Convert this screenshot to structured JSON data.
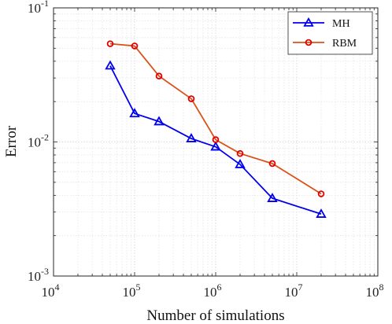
{
  "chart_data": {
    "type": "line",
    "xscale": "log",
    "yscale": "log",
    "xlabel": "Number of simulations",
    "ylabel": "Error",
    "xlim": [
      10000,
      100000000
    ],
    "ylim": [
      0.001,
      0.1
    ],
    "grid": true,
    "legend_position": "top-right",
    "x_ticks": [
      {
        "base": "10",
        "exp": "4",
        "value": 10000
      },
      {
        "base": "10",
        "exp": "5",
        "value": 100000
      },
      {
        "base": "10",
        "exp": "6",
        "value": 1000000
      },
      {
        "base": "10",
        "exp": "7",
        "value": 10000000
      },
      {
        "base": "10",
        "exp": "8",
        "value": 100000000
      }
    ],
    "y_ticks": [
      {
        "base": "10",
        "exp": "-3",
        "value": 0.001
      },
      {
        "base": "10",
        "exp": "-2",
        "value": 0.01
      },
      {
        "base": "10",
        "exp": "-1",
        "value": 0.1
      }
    ],
    "series": [
      {
        "name": "MH",
        "color": "#0000ee",
        "marker": "triangle",
        "x": [
          50000,
          100000,
          200000,
          500000,
          1000000,
          2000000,
          5000000,
          20000000
        ],
        "y": [
          0.037,
          0.0163,
          0.0142,
          0.0106,
          0.0092,
          0.0068,
          0.0038,
          0.0029
        ]
      },
      {
        "name": "RBM",
        "color": "#d95319",
        "marker_color": "#e00000",
        "marker": "circle",
        "x": [
          50000,
          100000,
          200000,
          500000,
          1000000,
          2000000,
          5000000,
          20000000
        ],
        "y": [
          0.054,
          0.052,
          0.031,
          0.021,
          0.0104,
          0.0082,
          0.0069,
          0.0041
        ]
      }
    ]
  }
}
